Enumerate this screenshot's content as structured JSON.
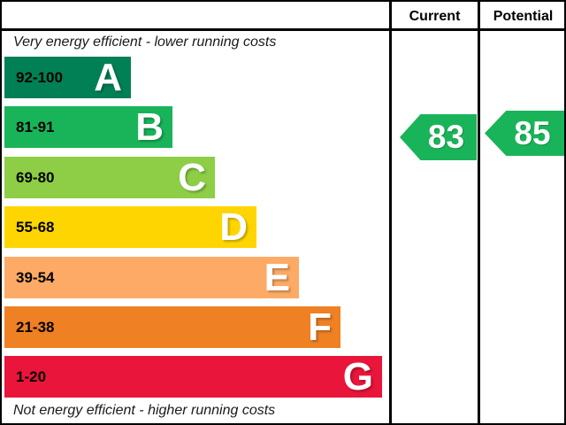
{
  "header": {
    "current_label": "Current",
    "potential_label": "Potential"
  },
  "notes": {
    "top": "Very energy efficient - lower running costs",
    "bottom": "Not energy efficient - higher running costs"
  },
  "chart_data": {
    "type": "bar",
    "orientation": "horizontal",
    "description": "Energy efficiency rating scale with graded bands A-G",
    "categories": [
      "A",
      "B",
      "C",
      "D",
      "E",
      "F",
      "G"
    ],
    "bands": [
      {
        "letter": "A",
        "range": "92-100",
        "color": "#008054"
      },
      {
        "letter": "B",
        "range": "81-91",
        "color": "#19b459"
      },
      {
        "letter": "C",
        "range": "69-80",
        "color": "#8dce46"
      },
      {
        "letter": "D",
        "range": "55-68",
        "color": "#ffd500"
      },
      {
        "letter": "E",
        "range": "39-54",
        "color": "#fcaa65"
      },
      {
        "letter": "F",
        "range": "21-38",
        "color": "#ef8023"
      },
      {
        "letter": "G",
        "range": "1-20",
        "color": "#e9153b"
      }
    ],
    "current": {
      "value": 83,
      "aligned_band": "B",
      "color": "#19b459"
    },
    "potential": {
      "value": 85,
      "aligned_band": "B",
      "color": "#19b459"
    },
    "legend_position": "none",
    "grid": false
  }
}
